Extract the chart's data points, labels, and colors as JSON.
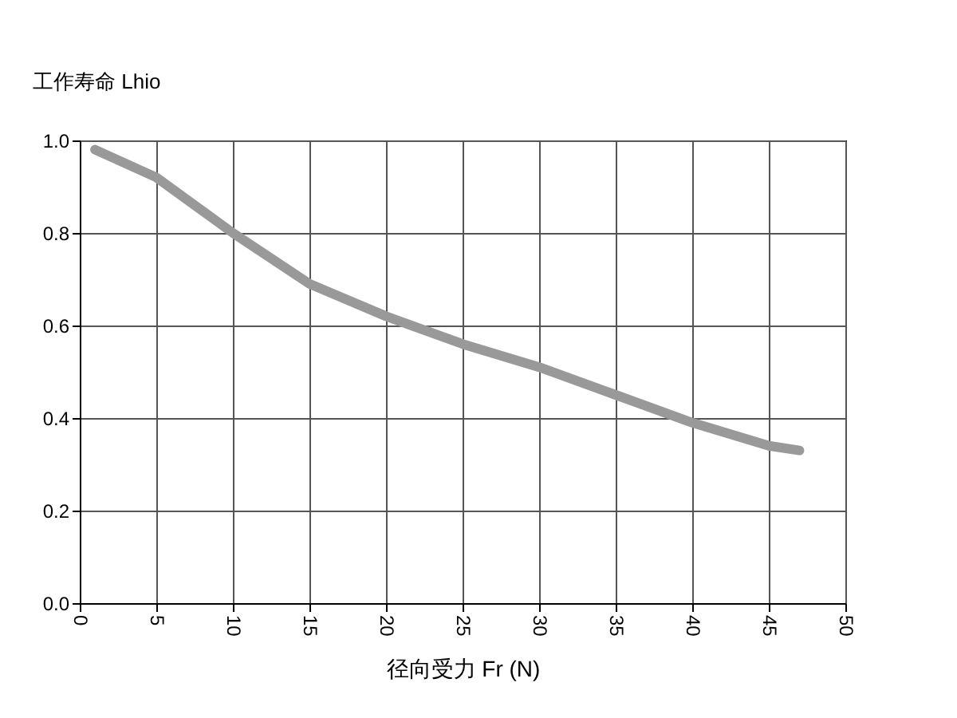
{
  "chart_data": {
    "type": "line",
    "ylabel": "工作寿命 Lhio",
    "xlabel": "径向受力 Fr (N)",
    "x": [
      1,
      5,
      10,
      15,
      20,
      25,
      30,
      35,
      40,
      45,
      47
    ],
    "series": [
      {
        "color": "#999999",
        "values": [
          0.98,
          0.92,
          0.8,
          0.69,
          0.62,
          0.56,
          0.51,
          0.45,
          0.39,
          0.34,
          0.33
        ]
      }
    ],
    "xlim": [
      0,
      50
    ],
    "xticks": [
      0,
      5,
      10,
      15,
      20,
      25,
      30,
      35,
      40,
      45,
      50
    ],
    "ylim": [
      0,
      1.0
    ],
    "yticks": [
      {
        "value": 0,
        "label": "0.0"
      },
      0.2,
      0.4,
      0.6,
      0.8,
      {
        "value": 1.0,
        "label": "1.0"
      }
    ],
    "grid": true,
    "line_style": "solid",
    "marker": "none",
    "legend": false
  }
}
